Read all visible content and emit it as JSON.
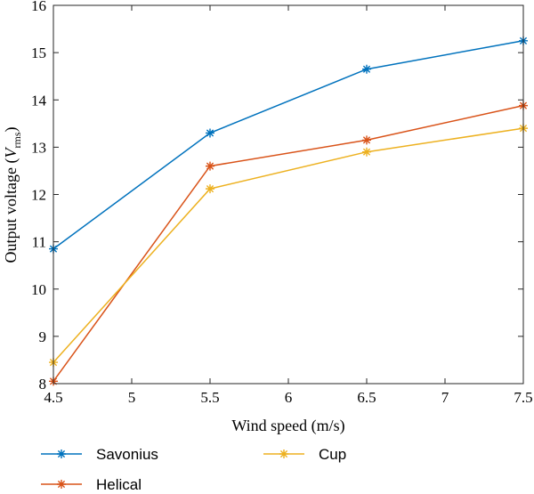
{
  "chart_data": {
    "type": "line",
    "xlabel": "Wind speed (m/s)",
    "ylabel_main": "Output voltage (",
    "ylabel_var": "V",
    "ylabel_sub": "rms",
    "ylabel_close": ")",
    "xlim": [
      4.5,
      7.5
    ],
    "ylim": [
      8,
      16
    ],
    "xticks": [
      4.5,
      5,
      5.5,
      6,
      6.5,
      7,
      7.5
    ],
    "xtick_labels": [
      "4.5",
      "5",
      "5.5",
      "6",
      "6.5",
      "7",
      "7.5"
    ],
    "yticks": [
      8,
      9,
      10,
      11,
      12,
      13,
      14,
      15,
      16
    ],
    "ytick_labels": [
      "8",
      "9",
      "10",
      "11",
      "12",
      "13",
      "14",
      "15",
      "16"
    ],
    "grid": false,
    "legend_position": "bottom",
    "marker": "asterisk",
    "x": [
      4.5,
      5.5,
      6.5,
      7.5
    ],
    "series": [
      {
        "name": "Savonius",
        "color": "#0072BD",
        "values": [
          10.85,
          13.3,
          14.65,
          15.25
        ]
      },
      {
        "name": "Helical",
        "color": "#D95319",
        "values": [
          8.05,
          12.6,
          13.15,
          13.88
        ]
      },
      {
        "name": "Cup",
        "color": "#EDB120",
        "values": [
          8.45,
          12.12,
          12.9,
          13.4
        ]
      }
    ]
  }
}
